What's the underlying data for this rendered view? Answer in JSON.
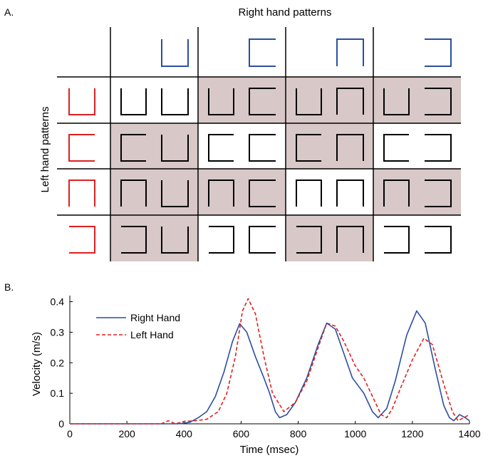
{
  "panel_a": {
    "label": "A.",
    "title": "Right hand patterns",
    "row_label": "Left hand patterns",
    "patterns": [
      "U",
      "C",
      "N",
      "D"
    ],
    "colors": {
      "right": "#2a4fa0",
      "left": "#e02020",
      "shade": "#d9c8c8",
      "line": "#000000"
    },
    "shaded": [
      [
        0,
        1,
        1,
        1
      ],
      [
        1,
        0,
        1,
        0
      ],
      [
        1,
        1,
        0,
        1
      ],
      [
        1,
        0,
        1,
        0
      ]
    ]
  },
  "panel_b": {
    "label": "B."
  },
  "chart_data": {
    "type": "line",
    "title": "",
    "xlabel": "Time (msec)",
    "ylabel": "Velocity (m/s)",
    "xlim": [
      0,
      1400
    ],
    "ylim": [
      0,
      0.42
    ],
    "xticks": [
      "0",
      "200",
      "400",
      "600",
      "800",
      "1000",
      "1200",
      "1400"
    ],
    "yticks": [
      "0",
      "0.1",
      "0.2",
      "0.3",
      "0.4"
    ],
    "legend": "top-left",
    "series": [
      {
        "name": "Right Hand",
        "color": "#2a4fa0",
        "style": "solid",
        "points": [
          [
            0,
            0
          ],
          [
            380,
            0
          ],
          [
            420,
            0.005
          ],
          [
            450,
            0.02
          ],
          [
            480,
            0.04
          ],
          [
            510,
            0.09
          ],
          [
            540,
            0.17
          ],
          [
            570,
            0.27
          ],
          [
            595,
            0.328
          ],
          [
            620,
            0.3
          ],
          [
            650,
            0.22
          ],
          [
            680,
            0.15
          ],
          [
            700,
            0.1
          ],
          [
            720,
            0.04
          ],
          [
            735,
            0.02
          ],
          [
            760,
            0.03
          ],
          [
            790,
            0.07
          ],
          [
            830,
            0.15
          ],
          [
            870,
            0.26
          ],
          [
            900,
            0.33
          ],
          [
            930,
            0.31
          ],
          [
            960,
            0.23
          ],
          [
            990,
            0.15
          ],
          [
            1030,
            0.1
          ],
          [
            1060,
            0.04
          ],
          [
            1080,
            0.02
          ],
          [
            1110,
            0.05
          ],
          [
            1140,
            0.14
          ],
          [
            1180,
            0.29
          ],
          [
            1215,
            0.37
          ],
          [
            1245,
            0.33
          ],
          [
            1280,
            0.18
          ],
          [
            1310,
            0.06
          ],
          [
            1330,
            0.02
          ],
          [
            1345,
            0.01
          ],
          [
            1365,
            0.03
          ],
          [
            1385,
            0.02
          ],
          [
            1400,
            0.01
          ]
        ]
      },
      {
        "name": "Left Hand",
        "color": "#e02020",
        "style": "dashed",
        "points": [
          [
            0,
            0
          ],
          [
            320,
            0
          ],
          [
            345,
            0.01
          ],
          [
            370,
            0
          ],
          [
            400,
            0.008
          ],
          [
            440,
            0.01
          ],
          [
            480,
            0.015
          ],
          [
            520,
            0.04
          ],
          [
            550,
            0.1
          ],
          [
            580,
            0.22
          ],
          [
            605,
            0.37
          ],
          [
            625,
            0.41
          ],
          [
            650,
            0.36
          ],
          [
            680,
            0.22
          ],
          [
            710,
            0.1
          ],
          [
            750,
            0.04
          ],
          [
            790,
            0.07
          ],
          [
            830,
            0.14
          ],
          [
            870,
            0.25
          ],
          [
            900,
            0.33
          ],
          [
            930,
            0.32
          ],
          [
            960,
            0.27
          ],
          [
            1000,
            0.19
          ],
          [
            1030,
            0.15
          ],
          [
            1060,
            0.09
          ],
          [
            1090,
            0.03
          ],
          [
            1110,
            0.02
          ],
          [
            1130,
            0.05
          ],
          [
            1160,
            0.12
          ],
          [
            1200,
            0.21
          ],
          [
            1240,
            0.28
          ],
          [
            1270,
            0.26
          ],
          [
            1310,
            0.13
          ],
          [
            1340,
            0.04
          ],
          [
            1360,
            0.01
          ],
          [
            1380,
            0.02
          ],
          [
            1400,
            0.03
          ]
        ]
      }
    ]
  }
}
